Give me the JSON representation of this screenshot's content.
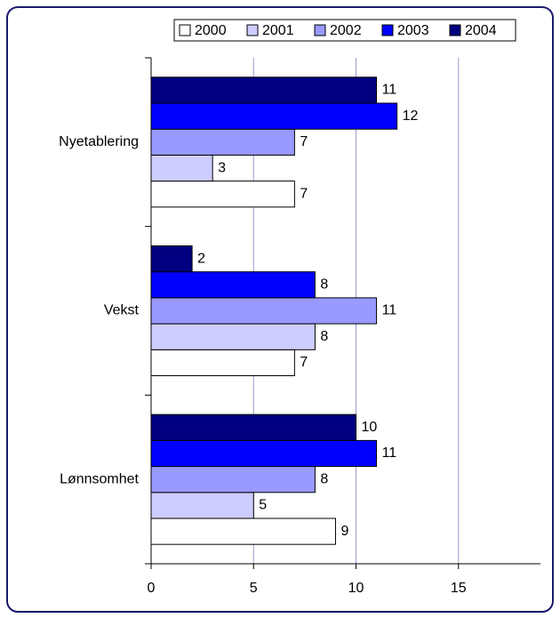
{
  "chart_data": {
    "type": "hbar",
    "categories": [
      "Nyetablering",
      "Vekst",
      "Lønnsomhet"
    ],
    "series": [
      {
        "name": "2000",
        "color": "#ffffff",
        "values": [
          7,
          7,
          9
        ]
      },
      {
        "name": "2001",
        "color": "#ccccff",
        "values": [
          3,
          8,
          5
        ]
      },
      {
        "name": "2002",
        "color": "#9999ff",
        "values": [
          7,
          11,
          8
        ]
      },
      {
        "name": "2003",
        "color": "#0000ff",
        "values": [
          12,
          8,
          11
        ]
      },
      {
        "name": "2004",
        "color": "#000080",
        "values": [
          11,
          2,
          10
        ]
      }
    ],
    "xlim": [
      0,
      19
    ],
    "xticks": [
      0,
      5,
      10,
      15
    ],
    "grid": true,
    "legend": "top"
  }
}
